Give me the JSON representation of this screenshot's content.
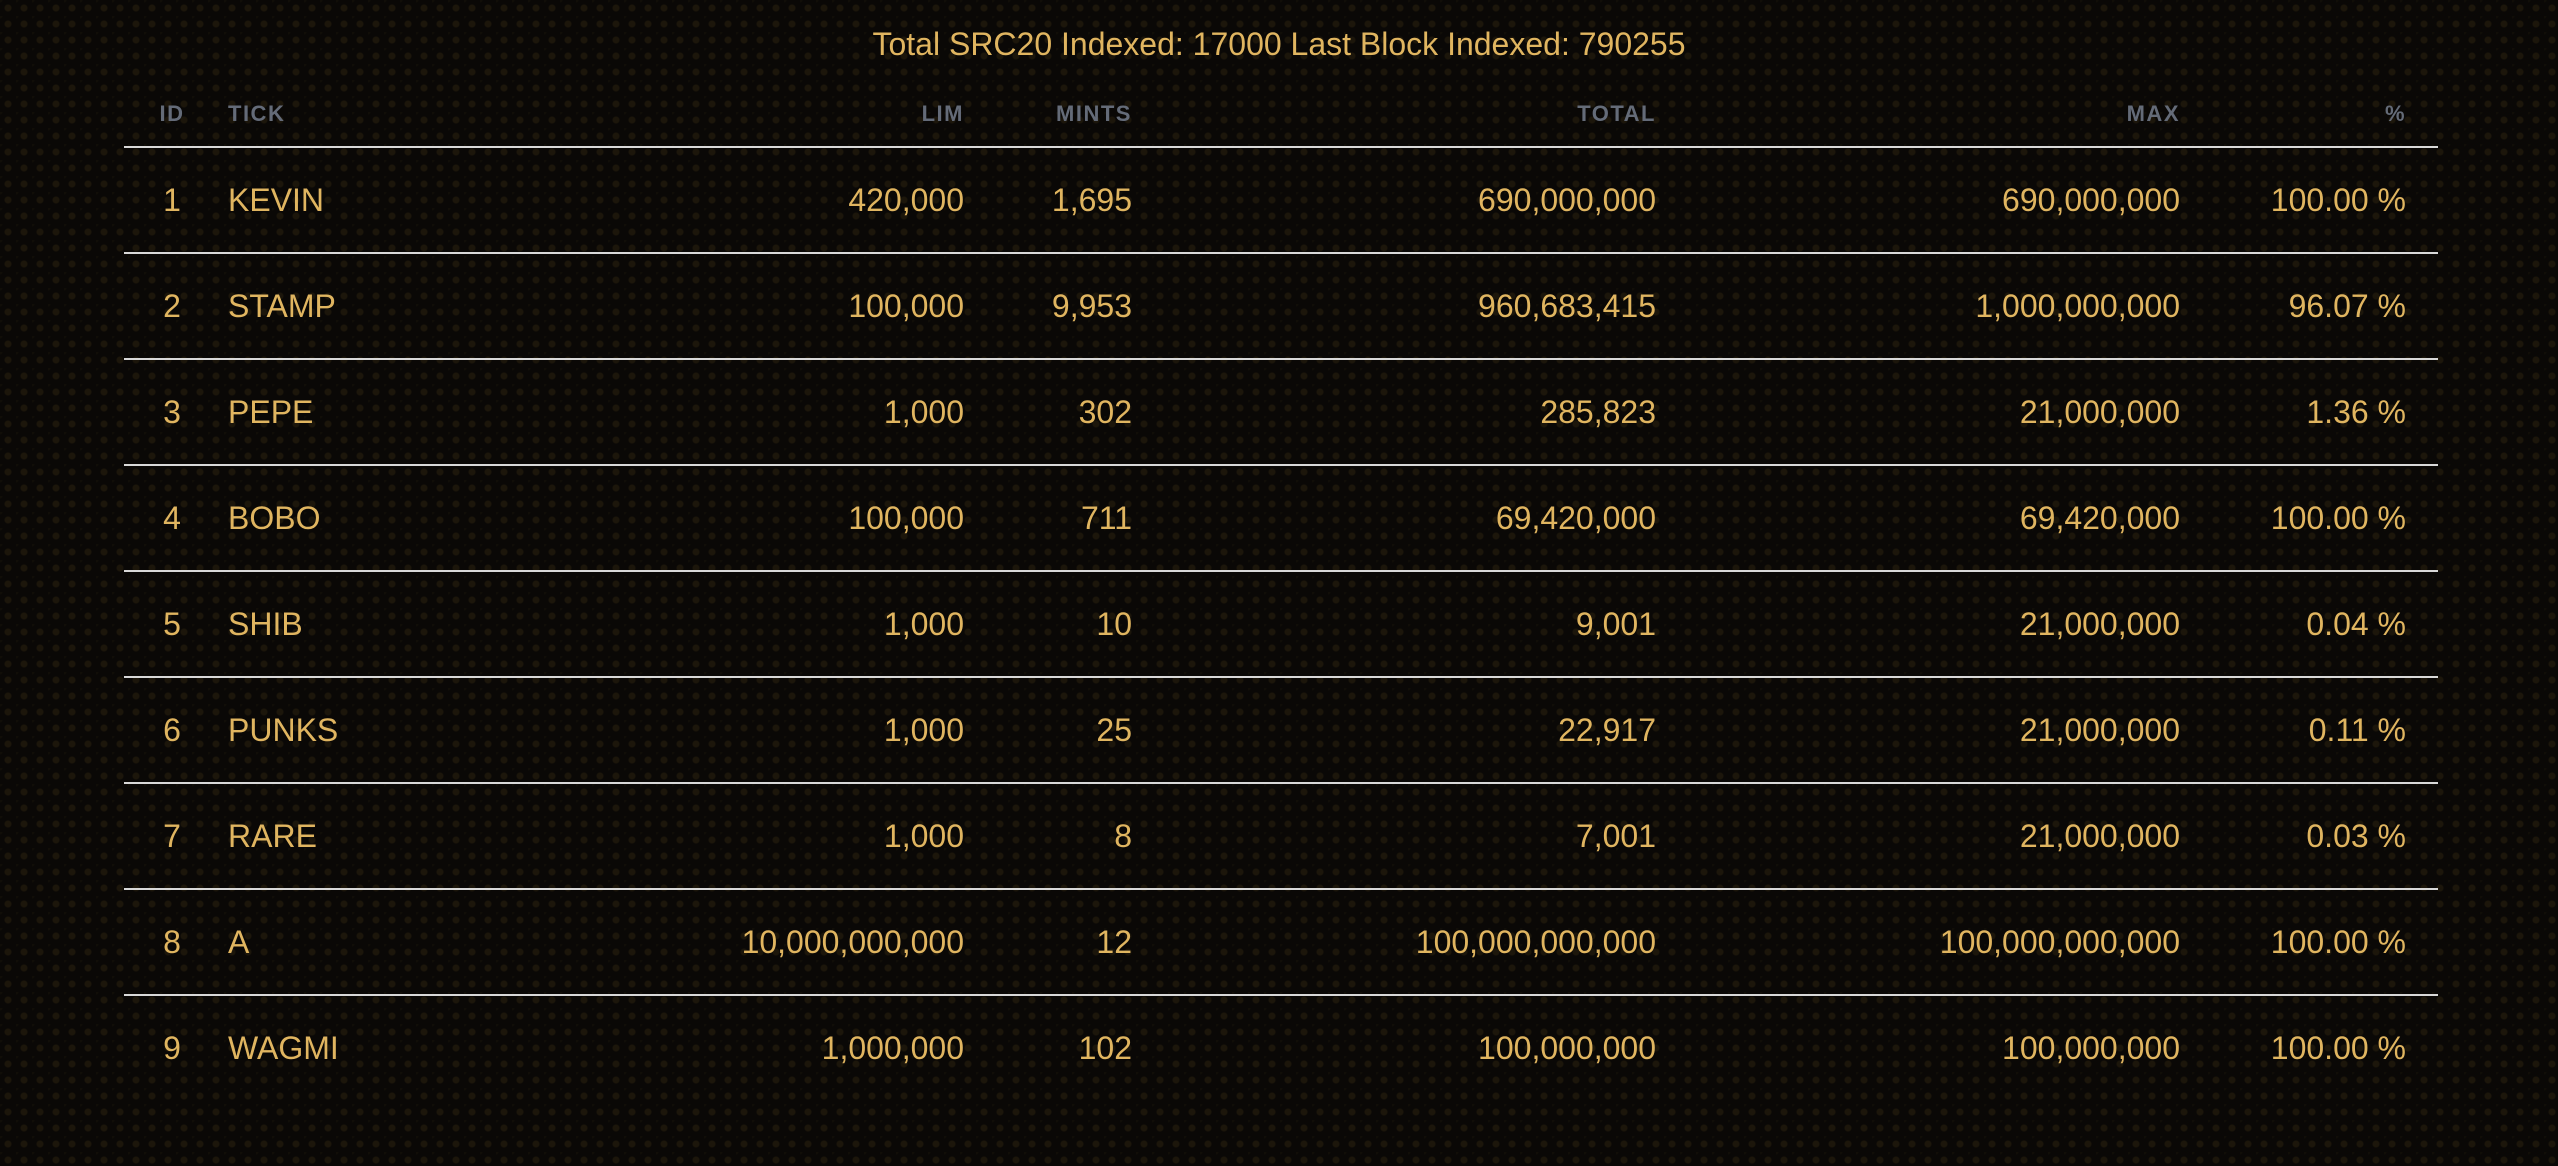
{
  "summary": {
    "total_label": "Total SRC20 Indexed:",
    "total_value": "17000",
    "block_label": "Last Block Indexed:",
    "block_value": "790255"
  },
  "table": {
    "headers": {
      "id": "ID",
      "tick": "TICK",
      "lim": "LIM",
      "mints": "MINTS",
      "total": "TOTAL",
      "max": "MAX",
      "pct": "%"
    },
    "rows": [
      {
        "id": "1",
        "tick": "KEVIN",
        "lim": "420,000",
        "mints": "1,695",
        "total": "690,000,000",
        "max": "690,000,000",
        "pct": "100.00 %"
      },
      {
        "id": "2",
        "tick": "STAMP",
        "lim": "100,000",
        "mints": "9,953",
        "total": "960,683,415",
        "max": "1,000,000,000",
        "pct": "96.07 %"
      },
      {
        "id": "3",
        "tick": "PEPE",
        "lim": "1,000",
        "mints": "302",
        "total": "285,823",
        "max": "21,000,000",
        "pct": "1.36 %"
      },
      {
        "id": "4",
        "tick": "BOBO",
        "lim": "100,000",
        "mints": "711",
        "total": "69,420,000",
        "max": "69,420,000",
        "pct": "100.00 %"
      },
      {
        "id": "5",
        "tick": "SHIB",
        "lim": "1,000",
        "mints": "10",
        "total": "9,001",
        "max": "21,000,000",
        "pct": "0.04 %"
      },
      {
        "id": "6",
        "tick": "PUNKS",
        "lim": "1,000",
        "mints": "25",
        "total": "22,917",
        "max": "21,000,000",
        "pct": "0.11 %"
      },
      {
        "id": "7",
        "tick": "RARE",
        "lim": "1,000",
        "mints": "8",
        "total": "7,001",
        "max": "21,000,000",
        "pct": "0.03 %"
      },
      {
        "id": "8",
        "tick": "A",
        "lim": "10,000,000,000",
        "mints": "12",
        "total": "100,000,000,000",
        "max": "100,000,000,000",
        "pct": "100.00 %"
      },
      {
        "id": "9",
        "tick": "WAGMI",
        "lim": "1,000,000",
        "mints": "102",
        "total": "100,000,000",
        "max": "100,000,000",
        "pct": "100.00 %"
      }
    ]
  },
  "colors": {
    "background": "#0a0806",
    "text_gold": "#e0b560",
    "header_gray": "#646b78",
    "row_divider": "#d8d8d8"
  }
}
